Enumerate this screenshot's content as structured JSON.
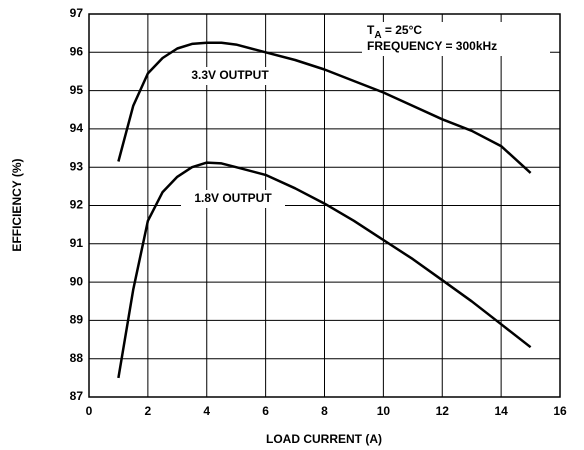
{
  "chart_data": {
    "type": "line",
    "x_label": "LOAD CURRENT (A)",
    "y_label": "EFFICIENCY (%)",
    "annotation": {
      "t": "T",
      "sub": "A",
      "rest": " = 25°C",
      "line2": "FREQUENCY = 300kHz"
    },
    "x": [
      1,
      1.5,
      2,
      2.5,
      3,
      3.5,
      4,
      4.5,
      5,
      6,
      7,
      8,
      9,
      10,
      11,
      12,
      13,
      14,
      15
    ],
    "series": [
      {
        "name": "3.3V OUTPUT",
        "color": "#000000",
        "values": [
          93.15,
          94.6,
          95.45,
          95.85,
          96.1,
          96.22,
          96.25,
          96.25,
          96.2,
          96.0,
          95.8,
          95.55,
          95.25,
          94.95,
          94.6,
          94.25,
          93.95,
          93.55,
          92.85
        ]
      },
      {
        "name": "1.8V OUTPUT",
        "color": "#000000",
        "values": [
          87.5,
          89.8,
          91.6,
          92.35,
          92.75,
          93.0,
          93.12,
          93.1,
          93.0,
          92.8,
          92.45,
          92.05,
          91.6,
          91.1,
          90.6,
          90.05,
          89.5,
          88.9,
          88.3
        ]
      }
    ],
    "xlim": [
      0,
      16
    ],
    "xticks": [
      0,
      2,
      4,
      6,
      8,
      10,
      12,
      14,
      16
    ],
    "ylim": [
      87,
      97
    ],
    "yticks": [
      87,
      88,
      89,
      90,
      91,
      92,
      93,
      94,
      95,
      96,
      97
    ],
    "grid": true
  }
}
